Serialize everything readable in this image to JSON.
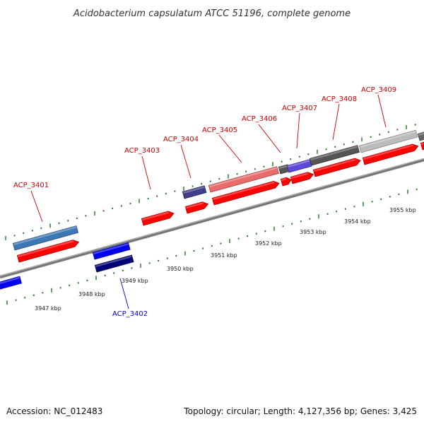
{
  "title": "Acidobacterium capsulatum ATCC 51196, complete genome",
  "footer": {
    "accession": "Accession: NC_012483",
    "summary": "Topology: circular; Length: 4,127,356 bp; Genes: 3,425"
  },
  "colors": {
    "backbone": "#888888",
    "tick": "#1a7a1a",
    "forward_label": "#cc0000",
    "reverse_label": "#0000cc",
    "cds": "#ff0000"
  },
  "scale": {
    "labels": [
      "3947 kbp",
      "3948 kbp",
      "3949 kbp",
      "3950 kbp",
      "3951 kbp",
      "3952 kbp",
      "3953 kbp",
      "3954 kbp",
      "3955 kbp"
    ]
  },
  "genes": [
    {
      "name": "ACP_3401",
      "strand": "+"
    },
    {
      "name": "ACP_3402",
      "strand": "-"
    },
    {
      "name": "ACP_3403",
      "strand": "+"
    },
    {
      "name": "ACP_3404",
      "strand": "+"
    },
    {
      "name": "ACP_3405",
      "strand": "+"
    },
    {
      "name": "ACP_3406",
      "strand": "+"
    },
    {
      "name": "ACP_3407",
      "strand": "+"
    },
    {
      "name": "ACP_3408",
      "strand": "+"
    },
    {
      "name": "ACP_3409",
      "strand": "+"
    }
  ]
}
